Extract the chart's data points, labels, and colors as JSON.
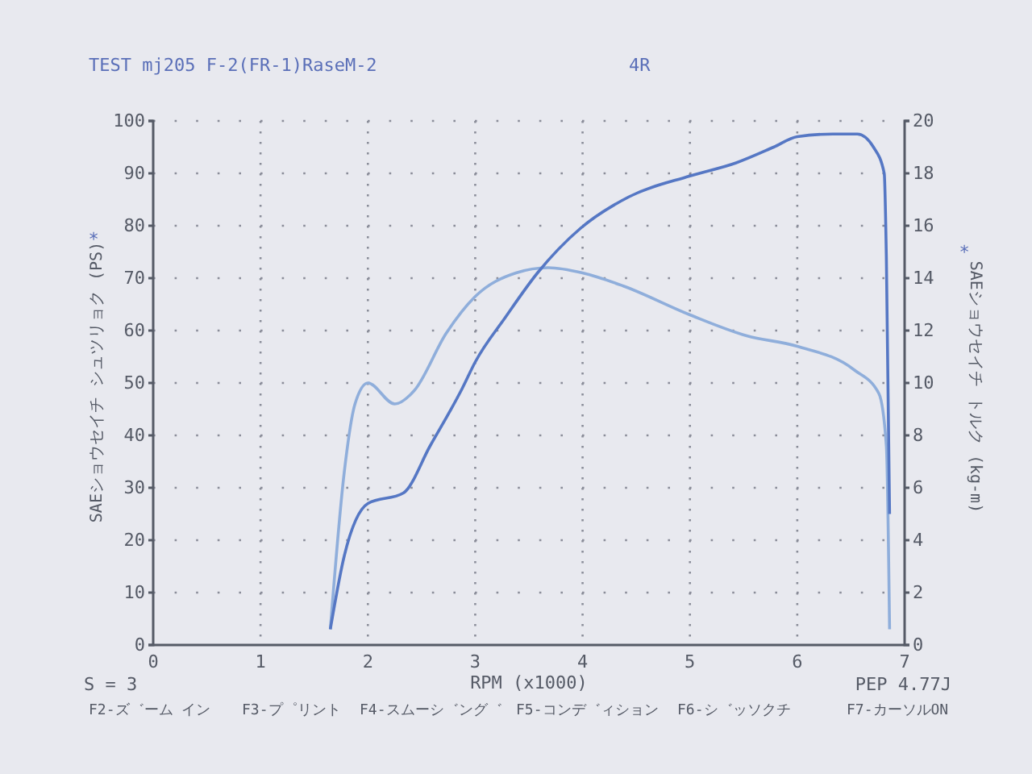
{
  "chart_data": {
    "type": "line",
    "title": "TEST mj205 F-2(FR-1)RaseM-2",
    "subtitle": "4R",
    "xlabel": "RPM (x1000)",
    "ylabel": "SAEショウセイチ シュツリョク (PS)",
    "y2label": "SAEショウセイチ トルク (kg-m)",
    "annotations": [
      "*",
      "*",
      "S = 3",
      "PEP 4.77J",
      "F2-ズ゛ーム イン",
      "F3-プ゜リント",
      "F4-スムーシ゛ング゛",
      "F5-コンデ゛ィション",
      "F6-シ゛ッソクチ",
      "F7-カーソルON"
    ],
    "xlim": [
      0,
      7
    ],
    "xticks": [
      0,
      1,
      2,
      3,
      4,
      5,
      6,
      7
    ],
    "ylim": [
      0,
      100
    ],
    "yticks": [
      0,
      10,
      20,
      30,
      40,
      50,
      60,
      70,
      80,
      90,
      100
    ],
    "y2lim": [
      0,
      20
    ],
    "y2ticks": [
      0,
      2,
      4,
      6,
      8,
      10,
      12,
      14,
      16,
      18,
      20
    ],
    "grid": true,
    "marker": "none",
    "line_style": "solid",
    "series": [
      {
        "color": "#5577c4",
        "x": [
          1.65,
          1.78,
          2.0,
          2.33,
          2.58,
          2.88,
          3.0,
          3.28,
          3.58,
          3.98,
          4.43,
          5.0,
          5.43,
          5.78,
          6.0,
          6.33,
          6.56,
          6.71,
          6.81,
          6.83,
          6.86
        ],
        "values": [
          3,
          17,
          27,
          29,
          38,
          49,
          54,
          62.5,
          71,
          79.5,
          85.5,
          89.5,
          92,
          95,
          97,
          97.5,
          97.5,
          95,
          90,
          74,
          25
        ]
      },
      {
        "color": "#8faedb",
        "axis": "y2",
        "x": [
          1.65,
          1.78,
          1.88,
          2.0,
          2.25,
          2.43,
          2.73,
          3.0,
          3.38,
          3.68,
          4.0,
          4.38,
          5.0,
          5.53,
          6.0,
          6.53,
          6.76,
          6.83,
          6.86
        ],
        "values": [
          0.6,
          6.6,
          9.2,
          10,
          9.2,
          9.7,
          11.9,
          13.3,
          14.2,
          14.4,
          14.2,
          13.7,
          12.6,
          11.8,
          11.4,
          10.5,
          9.6,
          7.6,
          0.6
        ]
      }
    ]
  }
}
